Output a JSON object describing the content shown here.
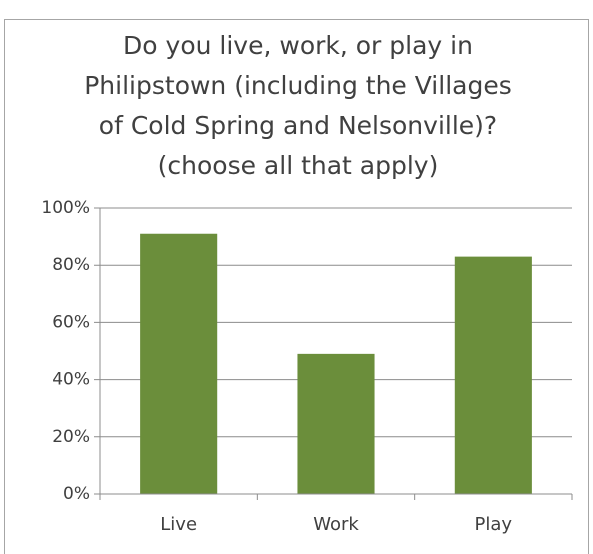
{
  "chart_data": {
    "type": "bar",
    "title": [
      "Do you live, work, or play in",
      "Philipstown (including the Villages",
      "of Cold Spring and Nelsonville)?",
      "(choose all that apply)"
    ],
    "categories": [
      "Live",
      "Work",
      "Play"
    ],
    "values": [
      91,
      49,
      83
    ],
    "color": "#6b8e3b",
    "ylim": [
      0,
      100
    ],
    "yticks": [
      {
        "value": 0,
        "label": "0%"
      },
      {
        "value": 20,
        "label": "20%"
      },
      {
        "value": 40,
        "label": "40%"
      },
      {
        "value": 60,
        "label": "60%"
      },
      {
        "value": 80,
        "label": "80%"
      },
      {
        "value": 100,
        "label": "100%"
      }
    ],
    "grid": true
  }
}
